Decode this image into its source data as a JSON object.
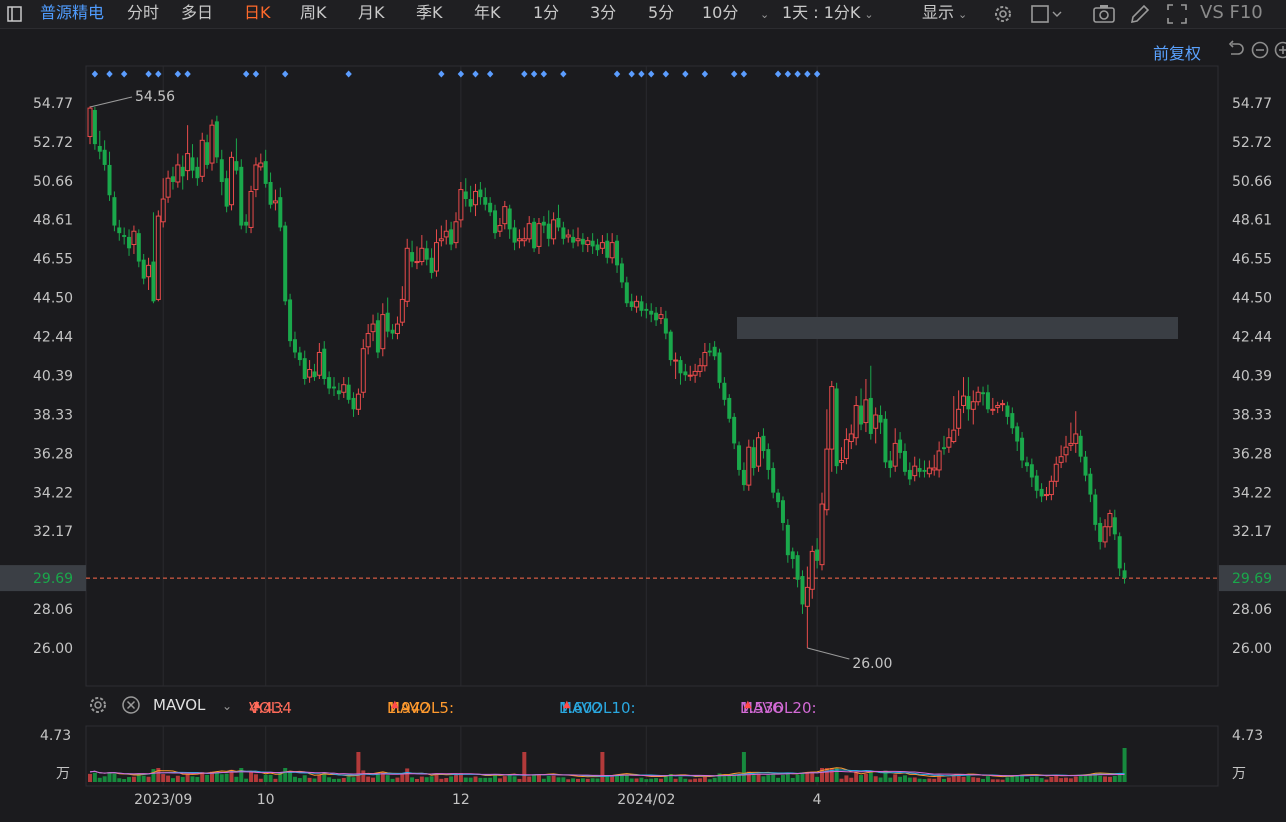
{
  "topbar": {
    "stock_name": "普源精电",
    "periods": [
      "分时",
      "多日",
      "日K",
      "周K",
      "月K",
      "季K",
      "年K",
      "1分",
      "3分",
      "5分",
      "10分"
    ],
    "active_period": "日K",
    "range_label": "1天 : 1分K",
    "display_label": "显示",
    "right_label": "VS F10"
  },
  "adjust_label": "前复权",
  "colors": {
    "up": "#e84b4b",
    "down": "#1aa84b",
    "bg": "#1b1b1e",
    "last": "#ff6a4b",
    "marker": "#5b9dff",
    "ma5": "#ff9a2e",
    "ma10": "#2aa8e0",
    "ma20": "#d36ad6"
  },
  "chart_data": {
    "type": "candlestick",
    "y_ticks": [
      "54.77",
      "52.72",
      "50.66",
      "48.61",
      "46.55",
      "44.50",
      "42.44",
      "40.39",
      "38.33",
      "36.28",
      "34.22",
      "32.17",
      "28.06",
      "26.00"
    ],
    "ylim": [
      26.0,
      54.77
    ],
    "x_tick_labels": [
      "2023/09",
      "10",
      "12",
      "2024/02",
      "4"
    ],
    "x_tick_index": [
      15,
      36,
      76,
      114,
      149
    ],
    "max_label": "54.56",
    "min_label": "26.00",
    "last_price": "29.69",
    "marker_index": [
      1,
      4,
      7,
      12,
      14,
      18,
      20,
      32,
      34,
      40,
      53,
      72,
      76,
      79,
      82,
      89,
      91,
      93,
      97,
      108,
      111,
      113,
      115,
      118,
      122,
      126,
      132,
      134,
      141,
      143,
      145,
      147,
      149
    ],
    "candles": [
      [
        53.0,
        54.5,
        54.6,
        52.6
      ],
      [
        54.4,
        52.6,
        54.56,
        52.3
      ],
      [
        52.5,
        52.2,
        53.3,
        51.8
      ],
      [
        52.3,
        51.5,
        52.8,
        51.2
      ],
      [
        51.5,
        49.9,
        52.2,
        49.6
      ],
      [
        49.8,
        48.3,
        50.1,
        48.0
      ],
      [
        48.2,
        47.9,
        48.6,
        47.5
      ],
      [
        47.8,
        47.7,
        48.2,
        47.3
      ],
      [
        47.7,
        47.1,
        48.1,
        46.7
      ],
      [
        47.3,
        48.0,
        48.3,
        46.8
      ],
      [
        47.9,
        46.4,
        48.1,
        46.1
      ],
      [
        46.5,
        45.5,
        46.8,
        45.2
      ],
      [
        45.6,
        46.2,
        46.6,
        44.9
      ],
      [
        46.4,
        44.3,
        49.0,
        44.2
      ],
      [
        44.4,
        48.8,
        49.1,
        44.3
      ],
      [
        48.5,
        49.7,
        50.8,
        48.2
      ],
      [
        49.8,
        50.8,
        51.2,
        49.5
      ],
      [
        50.9,
        50.6,
        51.4,
        50.2
      ],
      [
        50.6,
        51.5,
        52.1,
        50.3
      ],
      [
        51.4,
        50.9,
        52.0,
        50.2
      ],
      [
        51.2,
        52.1,
        53.6,
        50.7
      ],
      [
        51.9,
        51.2,
        52.6,
        50.8
      ],
      [
        51.4,
        50.8,
        51.9,
        50.4
      ],
      [
        50.9,
        52.8,
        53.2,
        50.6
      ],
      [
        52.7,
        51.5,
        53.1,
        51.3
      ],
      [
        51.6,
        53.6,
        53.9,
        51.2
      ],
      [
        53.8,
        51.9,
        54.1,
        51.6
      ],
      [
        51.8,
        50.6,
        52.3,
        49.9
      ],
      [
        50.8,
        49.3,
        51.2,
        49.0
      ],
      [
        49.4,
        51.9,
        52.2,
        49.1
      ],
      [
        51.7,
        51.2,
        52.9,
        51.0
      ],
      [
        51.4,
        48.3,
        51.8,
        48.1
      ],
      [
        48.5,
        48.3,
        48.9,
        47.9
      ],
      [
        48.2,
        50.1,
        50.4,
        47.9
      ],
      [
        50.2,
        51.5,
        51.9,
        49.8
      ],
      [
        51.4,
        51.6,
        52.1,
        51.2
      ],
      [
        51.7,
        50.5,
        52.3,
        50.3
      ],
      [
        50.6,
        49.4,
        51.1,
        49.2
      ],
      [
        49.5,
        49.6,
        50.2,
        49.1
      ],
      [
        49.8,
        48.2,
        50.3,
        48.0
      ],
      [
        48.3,
        44.3,
        48.5,
        44.1
      ],
      [
        44.4,
        42.2,
        44.7,
        41.9
      ],
      [
        42.3,
        41.6,
        42.7,
        41.3
      ],
      [
        41.6,
        41.2,
        41.9,
        40.9
      ],
      [
        41.3,
        40.2,
        41.7,
        39.9
      ],
      [
        40.3,
        40.7,
        41.2,
        40.0
      ],
      [
        40.6,
        40.3,
        41.0,
        40.1
      ],
      [
        40.4,
        41.6,
        42.1,
        40.2
      ],
      [
        41.8,
        40.2,
        42.2,
        39.9
      ],
      [
        40.3,
        39.7,
        40.6,
        39.4
      ],
      [
        39.8,
        39.7,
        40.3,
        39.3
      ],
      [
        39.6,
        39.4,
        40.0,
        39.1
      ],
      [
        39.5,
        39.9,
        40.3,
        39.2
      ],
      [
        39.9,
        39.1,
        40.3,
        38.9
      ],
      [
        39.2,
        38.6,
        39.5,
        38.2
      ],
      [
        38.6,
        39.4,
        39.7,
        38.3
      ],
      [
        39.5,
        41.8,
        42.3,
        39.2
      ],
      [
        41.9,
        42.6,
        43.1,
        41.5
      ],
      [
        42.7,
        43.1,
        43.6,
        42.2
      ],
      [
        43.3,
        41.6,
        43.7,
        41.3
      ],
      [
        41.8,
        43.6,
        44.2,
        41.4
      ],
      [
        43.7,
        42.7,
        44.5,
        42.4
      ],
      [
        42.8,
        42.6,
        43.1,
        42.3
      ],
      [
        42.6,
        43.1,
        43.5,
        42.3
      ],
      [
        43.2,
        44.4,
        45.1,
        43.0
      ],
      [
        44.3,
        47.1,
        47.6,
        44.0
      ],
      [
        46.9,
        46.4,
        47.5,
        46.1
      ],
      [
        46.4,
        46.4,
        47.2,
        46.0
      ],
      [
        46.4,
        47.1,
        47.8,
        46.2
      ],
      [
        47.1,
        46.5,
        47.5,
        46.2
      ],
      [
        46.6,
        45.8,
        47.1,
        45.5
      ],
      [
        45.9,
        47.4,
        48.1,
        45.6
      ],
      [
        47.5,
        47.6,
        48.3,
        47.2
      ],
      [
        47.7,
        48.0,
        48.6,
        47.3
      ],
      [
        48.1,
        47.3,
        48.5,
        47.0
      ],
      [
        47.4,
        48.5,
        49.0,
        47.1
      ],
      [
        48.6,
        50.2,
        50.6,
        48.2
      ],
      [
        50.1,
        49.7,
        50.8,
        49.3
      ],
      [
        49.7,
        49.3,
        50.4,
        49.0
      ],
      [
        49.4,
        50.1,
        50.5,
        48.8
      ],
      [
        50.2,
        49.8,
        50.6,
        49.4
      ],
      [
        49.8,
        49.4,
        50.3,
        49.1
      ],
      [
        49.5,
        49.0,
        49.8,
        48.8
      ],
      [
        49.1,
        47.9,
        49.4,
        47.6
      ],
      [
        48.0,
        48.3,
        48.7,
        47.7
      ],
      [
        48.4,
        49.3,
        49.6,
        48.1
      ],
      [
        49.2,
        48.1,
        49.4,
        47.6
      ],
      [
        48.2,
        47.4,
        48.6,
        47.0
      ],
      [
        47.5,
        47.6,
        48.1,
        47.1
      ],
      [
        47.5,
        47.6,
        48.2,
        47.2
      ],
      [
        47.6,
        48.4,
        48.8,
        47.4
      ],
      [
        48.5,
        47.1,
        48.7,
        46.9
      ],
      [
        47.2,
        48.4,
        48.7,
        46.8
      ],
      [
        48.5,
        48.3,
        48.8,
        47.9
      ],
      [
        48.4,
        47.6,
        49.1,
        47.2
      ],
      [
        47.6,
        48.6,
        49.0,
        47.3
      ],
      [
        48.7,
        48.2,
        49.4,
        48.0
      ],
      [
        48.2,
        47.6,
        48.5,
        47.3
      ],
      [
        47.7,
        47.8,
        48.1,
        47.4
      ],
      [
        47.7,
        47.4,
        48.1,
        47.1
      ],
      [
        47.5,
        47.6,
        48.2,
        47.2
      ],
      [
        47.6,
        47.3,
        47.9,
        46.9
      ],
      [
        47.3,
        47.5,
        47.7,
        46.9
      ],
      [
        47.5,
        47.2,
        47.9,
        46.8
      ],
      [
        47.3,
        47.0,
        47.6,
        46.7
      ],
      [
        47.1,
        47.4,
        47.8,
        46.8
      ],
      [
        47.5,
        46.6,
        47.9,
        46.3
      ],
      [
        46.6,
        47.4,
        47.9,
        46.3
      ],
      [
        47.5,
        46.2,
        47.8,
        45.8
      ],
      [
        46.3,
        45.3,
        46.6,
        45.0
      ],
      [
        45.3,
        44.2,
        45.6,
        44.0
      ],
      [
        44.3,
        44.0,
        44.7,
        43.8
      ],
      [
        44.0,
        44.3,
        44.6,
        43.7
      ],
      [
        44.3,
        43.8,
        44.6,
        43.5
      ],
      [
        43.9,
        43.8,
        44.2,
        43.4
      ],
      [
        43.8,
        43.6,
        44.2,
        43.2
      ],
      [
        43.7,
        43.3,
        44.0,
        43.0
      ],
      [
        43.4,
        43.6,
        44.0,
        43.1
      ],
      [
        43.4,
        42.6,
        43.8,
        42.3
      ],
      [
        42.7,
        41.2,
        42.8,
        40.9
      ],
      [
        41.2,
        41.2,
        41.6,
        40.2
      ],
      [
        41.2,
        40.5,
        41.4,
        39.9
      ],
      [
        40.6,
        40.4,
        41.0,
        40.1
      ],
      [
        40.4,
        40.4,
        40.9,
        40.1
      ],
      [
        40.4,
        40.6,
        41.0,
        40.0
      ],
      [
        40.6,
        40.9,
        41.3,
        40.3
      ],
      [
        40.9,
        41.6,
        42.1,
        40.6
      ],
      [
        41.7,
        41.6,
        42.1,
        41.4
      ],
      [
        41.9,
        41.4,
        42.2,
        41.2
      ],
      [
        41.6,
        40.0,
        41.8,
        39.7
      ],
      [
        40.0,
        39.1,
        40.3,
        38.8
      ],
      [
        39.2,
        38.1,
        39.4,
        37.9
      ],
      [
        38.2,
        36.8,
        38.4,
        36.5
      ],
      [
        36.7,
        35.4,
        36.9,
        35.1
      ],
      [
        35.4,
        34.6,
        35.8,
        34.3
      ],
      [
        34.6,
        36.6,
        37.0,
        34.3
      ],
      [
        36.6,
        35.5,
        37.0,
        35.1
      ],
      [
        35.6,
        37.1,
        37.4,
        35.3
      ],
      [
        37.2,
        36.4,
        37.6,
        36.0
      ],
      [
        36.5,
        35.4,
        36.8,
        34.9
      ],
      [
        35.5,
        34.2,
        35.8,
        33.9
      ],
      [
        34.2,
        33.7,
        34.4,
        33.4
      ],
      [
        33.8,
        32.6,
        34.0,
        32.2
      ],
      [
        32.5,
        30.9,
        32.8,
        30.5
      ],
      [
        31.1,
        30.7,
        31.3,
        30.2
      ],
      [
        30.9,
        29.6,
        31.1,
        29.2
      ],
      [
        29.8,
        28.3,
        30.1,
        27.8
      ],
      [
        28.2,
        29.2,
        30.3,
        26.0
      ],
      [
        29.1,
        31.1,
        31.4,
        28.6
      ],
      [
        31.2,
        30.6,
        31.8,
        30.2
      ],
      [
        30.4,
        33.6,
        34.2,
        30.1
      ],
      [
        33.3,
        36.5,
        38.6,
        33.0
      ],
      [
        36.5,
        39.8,
        40.1,
        35.3
      ],
      [
        39.7,
        35.6,
        40.0,
        35.2
      ],
      [
        35.8,
        35.9,
        36.6,
        35.4
      ],
      [
        36.0,
        37.0,
        37.6,
        35.7
      ],
      [
        36.9,
        37.3,
        37.8,
        36.5
      ],
      [
        37.1,
        38.8,
        39.3,
        36.7
      ],
      [
        38.8,
        37.8,
        39.7,
        37.5
      ],
      [
        37.9,
        39.1,
        40.2,
        37.4
      ],
      [
        39.2,
        37.3,
        40.9,
        37.0
      ],
      [
        37.6,
        38.3,
        38.7,
        36.8
      ],
      [
        38.3,
        37.9,
        38.8,
        37.3
      ],
      [
        38.1,
        35.8,
        38.5,
        35.5
      ],
      [
        35.9,
        35.5,
        36.4,
        35.0
      ],
      [
        35.6,
        36.8,
        37.6,
        35.3
      ],
      [
        37.0,
        36.3,
        37.4,
        36.0
      ],
      [
        36.4,
        35.3,
        36.8,
        35.1
      ],
      [
        35.4,
        34.9,
        35.8,
        34.6
      ],
      [
        35.1,
        35.6,
        36.1,
        34.8
      ],
      [
        35.5,
        35.3,
        36.0,
        35.0
      ],
      [
        35.4,
        35.3,
        35.9,
        35.0
      ],
      [
        35.2,
        35.5,
        35.9,
        35.0
      ],
      [
        35.4,
        35.5,
        36.2,
        35.1
      ],
      [
        35.4,
        36.4,
        36.9,
        35.0
      ],
      [
        36.6,
        36.5,
        37.2,
        36.2
      ],
      [
        36.6,
        37.1,
        37.6,
        36.3
      ],
      [
        36.9,
        37.5,
        39.3,
        36.8
      ],
      [
        37.6,
        38.6,
        39.6,
        37.2
      ],
      [
        38.8,
        39.3,
        40.3,
        38.4
      ],
      [
        39.3,
        38.6,
        40.3,
        38.0
      ],
      [
        38.6,
        39.0,
        39.6,
        37.8
      ],
      [
        39.0,
        39.5,
        39.8,
        38.8
      ],
      [
        39.5,
        39.4,
        39.8,
        38.8
      ],
      [
        39.5,
        38.6,
        39.9,
        38.4
      ],
      [
        38.6,
        38.6,
        39.2,
        38.3
      ],
      [
        38.7,
        38.8,
        39.0,
        38.4
      ],
      [
        38.9,
        38.9,
        39.1,
        38.5
      ],
      [
        38.8,
        38.2,
        39.0,
        37.8
      ],
      [
        38.4,
        37.6,
        38.7,
        37.3
      ],
      [
        37.7,
        36.9,
        37.9,
        36.4
      ],
      [
        37.1,
        35.9,
        37.4,
        35.5
      ],
      [
        35.8,
        35.6,
        36.1,
        35.3
      ],
      [
        35.7,
        35.0,
        36.0,
        34.5
      ],
      [
        35.1,
        34.3,
        35.4,
        33.9
      ],
      [
        34.4,
        34.0,
        34.7,
        33.7
      ],
      [
        34.1,
        34.1,
        34.5,
        33.8
      ],
      [
        34.1,
        34.8,
        35.1,
        33.8
      ],
      [
        34.8,
        35.7,
        36.1,
        34.5
      ],
      [
        35.8,
        36.1,
        36.7,
        35.5
      ],
      [
        36.2,
        36.6,
        37.2,
        35.8
      ],
      [
        36.7,
        36.8,
        37.9,
        36.4
      ],
      [
        36.8,
        37.3,
        38.5,
        36.3
      ],
      [
        37.2,
        36.1,
        37.5,
        35.8
      ],
      [
        36.1,
        35.1,
        36.4,
        34.8
      ],
      [
        35.2,
        34.1,
        35.5,
        33.7
      ],
      [
        34.1,
        32.5,
        34.4,
        32.2
      ],
      [
        32.6,
        31.6,
        32.9,
        31.2
      ],
      [
        31.6,
        32.4,
        32.8,
        31.3
      ],
      [
        32.4,
        33.1,
        33.3,
        31.9
      ],
      [
        32.9,
        32.0,
        33.3,
        31.7
      ],
      [
        31.9,
        30.2,
        32.1,
        29.8
      ],
      [
        30.1,
        29.7,
        30.5,
        29.4
      ]
    ],
    "vol_label": "4.73",
    "vol_unit": "万"
  },
  "volume_indicator": {
    "name": "MAVOL",
    "items": [
      {
        "label": "VOL:",
        "value": "4.434",
        "color": "#ff6b5a"
      },
      {
        "label": "MAVOL5:",
        "value": "1.942",
        "color": "#ff9a2e"
      },
      {
        "label": "MAVOL10:",
        "value": "1.602",
        "color": "#2aa8e0"
      },
      {
        "label": "MAVOL20:",
        "value": "1.536",
        "color": "#d36ad6"
      }
    ]
  }
}
